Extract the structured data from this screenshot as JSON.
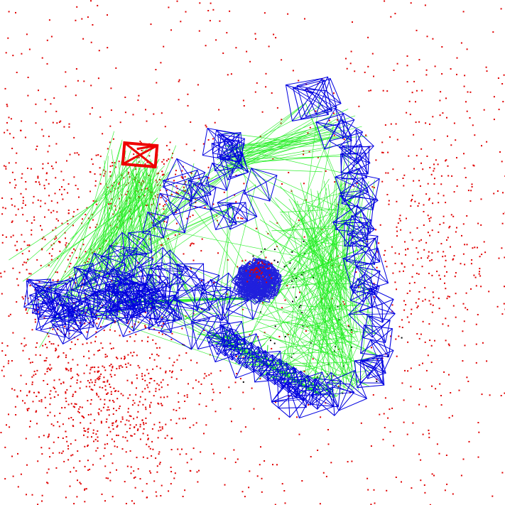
{
  "scene": {
    "background": "#ffffff",
    "colors": {
      "point_cloud": "#e00000",
      "point_sparse": "#000000",
      "camera_frustum": "#0000e0",
      "matches": "#22ee22",
      "current_camera": "#ee0000",
      "cluster": "#2020dd"
    },
    "counts": {
      "red_points": 2200,
      "black_points": 70,
      "cameras_main_loop": 62,
      "diagonal_cameras": 14,
      "match_lines": 420
    },
    "seed": 1337
  }
}
